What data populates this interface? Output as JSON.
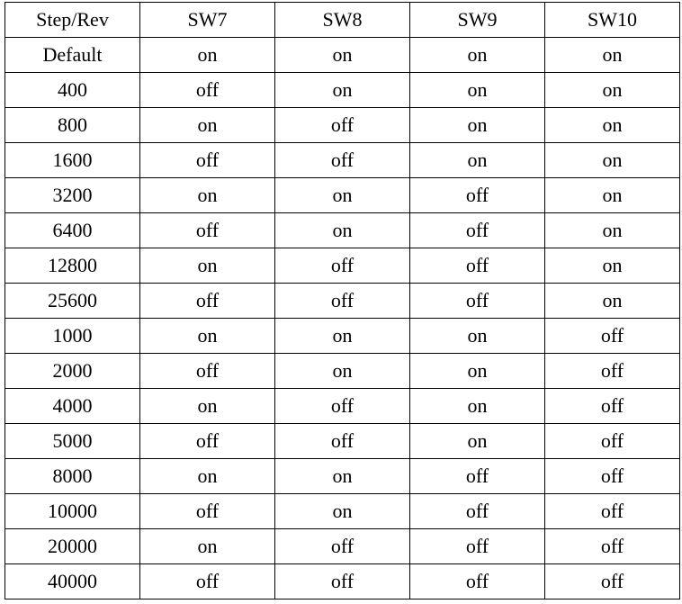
{
  "table": {
    "headers": [
      "Step/Rev",
      "SW7",
      "SW8",
      "SW9",
      "SW10"
    ],
    "rows": [
      [
        "Default",
        "on",
        "on",
        "on",
        "on"
      ],
      [
        "400",
        "off",
        "on",
        "on",
        "on"
      ],
      [
        "800",
        "on",
        "off",
        "on",
        "on"
      ],
      [
        "1600",
        "off",
        "off",
        "on",
        "on"
      ],
      [
        "3200",
        "on",
        "on",
        "off",
        "on"
      ],
      [
        "6400",
        "off",
        "on",
        "off",
        "on"
      ],
      [
        "12800",
        "on",
        "off",
        "off",
        "on"
      ],
      [
        "25600",
        "off",
        "off",
        "off",
        "on"
      ],
      [
        "1000",
        "on",
        "on",
        "on",
        "off"
      ],
      [
        "2000",
        "off",
        "on",
        "on",
        "off"
      ],
      [
        "4000",
        "on",
        "off",
        "on",
        "off"
      ],
      [
        "5000",
        "off",
        "off",
        "on",
        "off"
      ],
      [
        "8000",
        "on",
        "on",
        "off",
        "off"
      ],
      [
        "10000",
        "off",
        "on",
        "off",
        "off"
      ],
      [
        "20000",
        "on",
        "off",
        "off",
        "off"
      ],
      [
        "40000",
        "off",
        "off",
        "off",
        "off"
      ]
    ]
  }
}
